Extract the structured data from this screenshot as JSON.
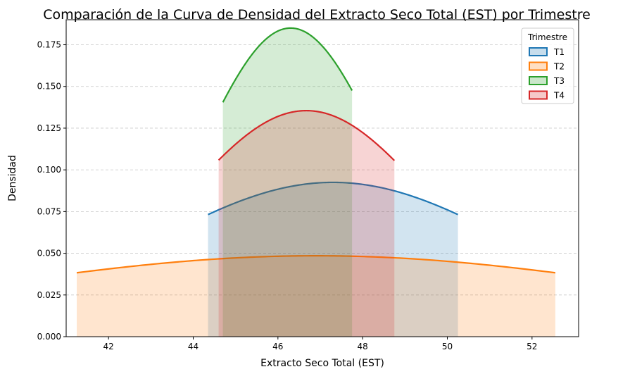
{
  "chart_data": {
    "type": "area",
    "title": "Comparación de la Curva de Densidad del Extracto Seco Total (EST) por Trimestre",
    "xlabel": "Extracto Seco Total (EST)",
    "ylabel": "Densidad",
    "xlim": [
      41.0,
      53.1
    ],
    "ylim": [
      0.0,
      0.19
    ],
    "xticks": [
      42,
      44,
      46,
      48,
      50,
      52
    ],
    "yticks": [
      0.0,
      0.025,
      0.05,
      0.075,
      0.1,
      0.125,
      0.15,
      0.175
    ],
    "xtick_labels": [
      "42",
      "44",
      "46",
      "48",
      "50",
      "52"
    ],
    "ytick_labels": [
      "0.000",
      "0.025",
      "0.050",
      "0.075",
      "0.100",
      "0.125",
      "0.150",
      "0.175"
    ],
    "grid": "y-dashed",
    "legend": {
      "title": "Trimestre",
      "placement": "top-right"
    },
    "series": [
      {
        "name": "T1",
        "color": "#1f77b4",
        "peak_x": 47.3,
        "peak_y": 0.0925,
        "support": [
          44.35,
          50.25
        ]
      },
      {
        "name": "T2",
        "color": "#ff7f0e",
        "peak_x": 46.9,
        "peak_y": 0.0485,
        "support": [
          41.25,
          52.55
        ]
      },
      {
        "name": "T3",
        "color": "#2ca02c",
        "peak_x": 46.3,
        "peak_y": 0.185,
        "support": [
          44.7,
          47.75
        ]
      },
      {
        "name": "T4",
        "color": "#d62728",
        "peak_x": 46.67,
        "peak_y": 0.1355,
        "support": [
          44.6,
          48.75
        ]
      }
    ]
  }
}
